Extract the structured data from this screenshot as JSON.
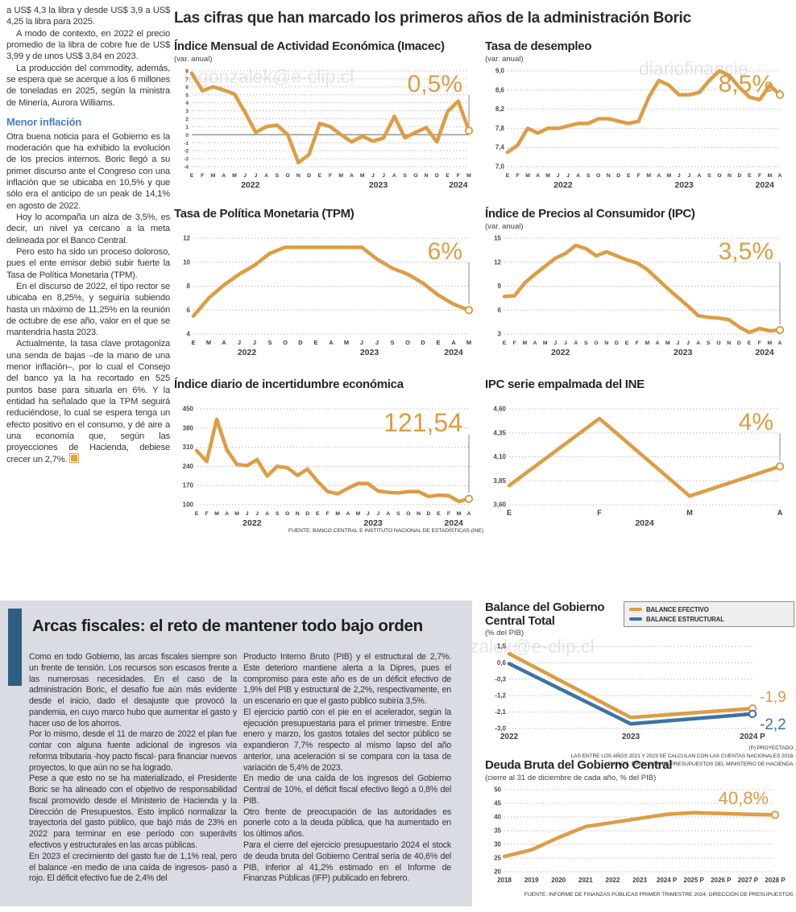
{
  "palette": {
    "orange": "#DE9C44",
    "blue": "#3C72A6",
    "grid": "#BDBDBD",
    "axis": "#4A4A4A",
    "accent_blue": "#2E5F83",
    "subhead_blue": "#4A7EBB"
  },
  "headline": "Las cifras que han marcado los primeros años de la administración Boric",
  "watermarks": [
    "iagonzalek@e-clip.cl",
    "diariofinancie",
    "diariofinanciero#hagonzalek@e-clip.cl"
  ],
  "article": {
    "paragraphs": [
      "a US$ 4,3 la libra y desde US$ 3,9 a US$ 4,25 la libra para 2025.",
      "A modo de contexto, en 2022 el precio promedio de la libra de cobre fue de US$ 3,99 y de unos US$ 3,84 en 2023.",
      "La producción del commodity, además, se espera que se acerque a los 6 millones de toneladas en 2025, según la ministra de Minería, Aurora Williams.",
      "Otra buena noticia para el Gobierno es la moderación que ha exhibido la evolución de los precios internos. Boric llegó a su primer discurso ante el Congreso con una inflación que se ubicaba en 10,5% y que sólo era el anticipo de un peak de 14,1% en agosto de 2022.",
      "Hoy lo acompaña un alza de 3,5%, es decir, un nivel ya cercano a la meta delineada por el Banco Central.",
      "Pero esto ha sido un proceso doloroso, pues el ente emisor debió subir fuerte la Tasa de Política Monetaria (TPM).",
      "En el discurso de 2022, el tipo rector se ubicaba en 8,25%, y seguiría subiendo hasta un máximo de 11,25% en la reunión de octubre de ese año, valor en el que se mantendría hasta 2023.",
      "Actualmente, la tasa clave protagoniza una senda de bajas –de la mano de una menor inflación–, por lo cual el Consejo del banco ya la ha recortado en 525 puntos base para situarla en 6%. Y la entidad ha señalado que la TPM seguirá reduciéndose, lo cual se espera tenga un efecto positivo en el consumo, y dé aire a una economía que, según las proyecciones de Hacienda, debiese crecer un 2,7%."
    ],
    "subhead": "Menor inflación"
  },
  "fiscal": {
    "title": "Arcas fiscales: el reto de mantener todo bajo orden",
    "col1": [
      "Como en todo Gobierno, las arcas fiscales siempre son un frente de tensión. Los recursos son escasos frente a las numerosas necesidades. En el caso de la administración Boric, el desafío fue aún más evidente desde el inicio, dado el desajuste que provocó la pandemia, en cuyo marco hubo que aumentar el gasto y hacer uso de los ahorros.",
      "Por lo mismo, desde el 11 de marzo de 2022 el plan fue contar con alguna fuente adicional de ingresos vía reforma tributaria -hoy pacto fiscal- para financiar nuevos proyectos, lo que aún no se ha logrado.",
      "Pese a que esto no se ha materializado, el Presidente Boric se ha alineado con el objetivo de responsabilidad fiscal promovido desde el Ministerio de Hacienda y la Dirección de Presupuestos. Esto implicó normalizar la trayectoria del gasto público, que bajó más de 23% en 2022 para terminar en ese período con superávits efectivos y estructurales en las arcas públicas.",
      "En 2023 el crecimiento del gasto fue de 1,1% real, pero el balance -en medio de una caída de ingresos-  pasó a rojo. El déficit efectivo fue de 2,4% del"
    ],
    "col2": [
      "Producto Interno Bruto (PIB) y el estructural de 2,7%. Este deterioro mantiene alerta a la Dipres, pues el compromiso para este año es de un déficit efectivo de 1,9% del PIB y estructural de 2,2%, respectivamente, en un escenario en que el gasto público subiría 3,5%.",
      "El ejercicio partió con el pie en el acelerador, según la ejecución presupuestaria para el primer trimestre. Entre enero y marzo, los gastos totales del sector público se expandieron 7,7% respecto al mismo lapso del año anterior, una aceleración si se compara con la tasa de variación de 5,4% de 2023.",
      "En medio de una caída de los ingresos del Gobierno Central de 10%, el déficit fiscal efectivo llegó a 0,8% del PIB.",
      "Otro frente de preocupación de las autoridades es ponerle coto a la deuda pública, que ha aumentado en los últimos años.",
      "Para el cierre del ejercicio presupuestario 2024 el stock de deuda bruta del Gobierno Central sería de 40,6% del PIB, inferior al 41,2% estimado en el Informe de Finanzas Públicas (IFP) publicado en febrero."
    ]
  },
  "chart_data": [
    {
      "id": "imacec",
      "type": "line",
      "title": "Índice Mensual de Actividad Económica (Imacec)",
      "subtitle": "(var. anual)",
      "ylim": [
        -4,
        8
      ],
      "zero_line": true,
      "marker_last": true,
      "connector": true,
      "yticks": [
        {
          "v": 8,
          "l": "8"
        },
        {
          "v": 7,
          "l": "7"
        },
        {
          "v": 6,
          "l": "6"
        },
        {
          "v": 5,
          "l": "5"
        },
        {
          "v": 4,
          "l": "4"
        },
        {
          "v": 3,
          "l": "3"
        },
        {
          "v": 2,
          "l": "2"
        },
        {
          "v": 1,
          "l": "1"
        },
        {
          "v": 0,
          "l": "0"
        },
        {
          "v": -1,
          "l": "-1"
        },
        {
          "v": -2,
          "l": "-2"
        },
        {
          "v": -3,
          "l": "-3"
        },
        {
          "v": -4,
          "l": "-4"
        }
      ],
      "x_labels": [
        "E",
        "F",
        "M",
        "A",
        "M",
        "J",
        "J",
        "A",
        "S",
        "O",
        "N",
        "D",
        "E",
        "F",
        "M",
        "A",
        "M",
        "J",
        "J",
        "A",
        "S",
        "O",
        "N",
        "D",
        "E",
        "F",
        "M"
      ],
      "years": [
        {
          "label": "2022",
          "i": 5.5
        },
        {
          "label": "2023",
          "i": 17.5
        },
        {
          "label": "2024",
          "i": 25
        }
      ],
      "series": [
        {
          "name": "Imacec var. anual",
          "color": "orange",
          "values": [
            7.7,
            5.5,
            6.0,
            5.6,
            5.1,
            2.8,
            0.3,
            1.0,
            1.2,
            0.0,
            -3.5,
            -2.5,
            1.4,
            1.0,
            0.0,
            -0.9,
            -0.2,
            -0.8,
            -0.4,
            2.3,
            -0.4,
            0.3,
            0.9,
            -0.9,
            2.9,
            4.2,
            0.5
          ]
        }
      ],
      "annotation": {
        "text": "0,5%",
        "color": "orange"
      }
    },
    {
      "id": "desempleo",
      "type": "line",
      "title": "Tasa de desempleo",
      "subtitle": "(var. anual)",
      "ylim": [
        7.0,
        9.0
      ],
      "zero_line": false,
      "marker_last": true,
      "connector": true,
      "yticks": [
        {
          "v": 9.0,
          "l": "9,0"
        },
        {
          "v": 8.6,
          "l": "8,6"
        },
        {
          "v": 8.2,
          "l": "8,2"
        },
        {
          "v": 7.8,
          "l": "7,8"
        },
        {
          "v": 7.4,
          "l": "7,4"
        },
        {
          "v": 7.0,
          "l": "7,0"
        }
      ],
      "x_labels": [
        "E",
        "F",
        "M",
        "A",
        "M",
        "J",
        "J",
        "A",
        "S",
        "O",
        "N",
        "D",
        "E",
        "F",
        "M",
        "A",
        "M",
        "J",
        "J",
        "A",
        "S",
        "O",
        "N",
        "D",
        "E",
        "F",
        "M",
        "A"
      ],
      "years": [
        {
          "label": "2022",
          "i": 5.5
        },
        {
          "label": "2023",
          "i": 17.5
        },
        {
          "label": "2024",
          "i": 25.5
        }
      ],
      "series": [
        {
          "name": "Tasa de desempleo",
          "color": "orange",
          "values": [
            7.3,
            7.45,
            7.8,
            7.7,
            7.8,
            7.8,
            7.85,
            7.9,
            7.9,
            8.0,
            8.0,
            7.95,
            7.9,
            7.95,
            8.45,
            8.8,
            8.7,
            8.5,
            8.5,
            8.55,
            8.8,
            9.0,
            8.9,
            8.65,
            8.45,
            8.4,
            8.7,
            8.5
          ]
        }
      ],
      "annotation": {
        "text": "8,5%",
        "color": "orange"
      }
    },
    {
      "id": "tpm",
      "type": "line",
      "title": "Tasa de Política Monetaria (TPM)",
      "subtitle": "",
      "ylim": [
        4,
        12
      ],
      "zero_line": false,
      "marker_last": true,
      "connector": true,
      "yticks": [
        {
          "v": 12,
          "l": "12"
        },
        {
          "v": 10,
          "l": "10"
        },
        {
          "v": 8,
          "l": "8"
        },
        {
          "v": 6,
          "l": "6"
        },
        {
          "v": 4,
          "l": "4"
        }
      ],
      "x_labels": [
        "E",
        "M",
        "A",
        "J",
        "J",
        "S",
        "O",
        "D",
        "E",
        "A",
        "M",
        "J",
        "J",
        "S",
        "O",
        "D",
        "E",
        "A",
        "M"
      ],
      "years": [
        {
          "label": "2022",
          "i": 3.5
        },
        {
          "label": "2023",
          "i": 11.5
        },
        {
          "label": "2024",
          "i": 17
        }
      ],
      "series": [
        {
          "name": "TPM",
          "color": "orange",
          "values": [
            5.5,
            7.0,
            8.1,
            9.0,
            9.75,
            10.75,
            11.25,
            11.25,
            11.25,
            11.25,
            11.25,
            11.25,
            10.25,
            9.5,
            9.0,
            8.25,
            7.25,
            6.5,
            6.0
          ]
        }
      ],
      "annotation": {
        "text": "6%",
        "color": "orange"
      }
    },
    {
      "id": "ipc",
      "type": "line",
      "title": "Índice de Precios al Consumidor (IPC)",
      "subtitle": "(var. anual)",
      "ylim": [
        3,
        15
      ],
      "zero_line": false,
      "marker_last": true,
      "connector": true,
      "yticks": [
        {
          "v": 15,
          "l": "15"
        },
        {
          "v": 12,
          "l": "12"
        },
        {
          "v": 9,
          "l": "9"
        },
        {
          "v": 6,
          "l": "6"
        },
        {
          "v": 3,
          "l": "3"
        }
      ],
      "x_labels": [
        "E",
        "F",
        "M",
        "A",
        "M",
        "J",
        "J",
        "A",
        "S",
        "O",
        "N",
        "D",
        "E",
        "F",
        "M",
        "A",
        "M",
        "J",
        "J",
        "A",
        "S",
        "O",
        "N",
        "D",
        "E",
        "F",
        "M",
        "A"
      ],
      "years": [
        {
          "label": "2022",
          "i": 5.5
        },
        {
          "label": "2023",
          "i": 17.5
        },
        {
          "label": "2024",
          "i": 25.5
        }
      ],
      "series": [
        {
          "name": "IPC var. anual",
          "color": "orange",
          "values": [
            7.7,
            7.8,
            9.4,
            10.5,
            11.5,
            12.5,
            13.1,
            14.1,
            13.7,
            12.8,
            13.3,
            12.8,
            12.3,
            11.9,
            11.1,
            9.9,
            8.7,
            7.6,
            6.5,
            5.3,
            5.1,
            5.0,
            4.8,
            3.9,
            3.2,
            3.7,
            3.4,
            3.5
          ]
        }
      ],
      "annotation": {
        "text": "3,5%",
        "color": "orange"
      }
    },
    {
      "id": "incertidumbre",
      "type": "line",
      "title": "Índice diario de incertidumbre económica",
      "subtitle": "",
      "ylim": [
        100,
        450
      ],
      "zero_line": false,
      "marker_last": true,
      "connector": true,
      "yticks": [
        {
          "v": 450,
          "l": "450"
        },
        {
          "v": 380,
          "l": "380"
        },
        {
          "v": 310,
          "l": "310"
        },
        {
          "v": 240,
          "l": "240"
        },
        {
          "v": 170,
          "l": "170"
        },
        {
          "v": 100,
          "l": "100"
        }
      ],
      "x_labels": [
        "E",
        "F",
        "M",
        "A",
        "M",
        "J",
        "J",
        "A",
        "S",
        "O",
        "N",
        "D",
        "E",
        "F",
        "M",
        "A",
        "M",
        "J",
        "J",
        "A",
        "S",
        "O",
        "N",
        "D",
        "E",
        "F",
        "M",
        "A"
      ],
      "years": [
        {
          "label": "2022",
          "i": 5.5
        },
        {
          "label": "2023",
          "i": 17.5
        },
        {
          "label": "2024",
          "i": 25.5
        }
      ],
      "series": [
        {
          "name": "Índice de incertidumbre",
          "color": "orange",
          "values": [
            298,
            258,
            412,
            300,
            247,
            243,
            265,
            205,
            240,
            235,
            207,
            230,
            185,
            148,
            140,
            160,
            178,
            177,
            150,
            145,
            143,
            148,
            148,
            130,
            135,
            133,
            112,
            121.54
          ]
        }
      ],
      "annotation": {
        "text": "121,54",
        "color": "orange"
      },
      "source": "FUENTE: BANCO CENTRAL E INSTITUTO NACIONAL DE ESTADÍSTICAS (INE)"
    },
    {
      "id": "ipc-empalmada",
      "type": "line",
      "title": "IPC serie empalmada del INE",
      "subtitle": "",
      "ylim": [
        3.6,
        4.6
      ],
      "zero_line": false,
      "marker_last": true,
      "connector": true,
      "yticks": [
        {
          "v": 4.6,
          "l": "4,60"
        },
        {
          "v": 4.35,
          "l": "4,35"
        },
        {
          "v": 4.1,
          "l": "4,10"
        },
        {
          "v": 3.85,
          "l": "3,85"
        },
        {
          "v": 3.6,
          "l": "3,60"
        }
      ],
      "x_labels": [
        "E",
        "F",
        "M",
        "A"
      ],
      "years": [
        {
          "label": "2024",
          "i": 1.5
        }
      ],
      "series": [
        {
          "name": "IPC serie empalmada",
          "color": "orange",
          "values": [
            3.8,
            4.5,
            3.69,
            4.0
          ]
        }
      ],
      "annotation": {
        "text": "4%",
        "color": "orange"
      }
    },
    {
      "id": "balance",
      "type": "line",
      "title": "Balance del Gobierno Central Total",
      "subtitle": "(% del PIB)",
      "ylim": [
        -3.0,
        1.5
      ],
      "zero_line": false,
      "marker_last": true,
      "connector": false,
      "yticks": [
        {
          "v": 1.5,
          "l": "1,5"
        },
        {
          "v": 0.6,
          "l": "0,6"
        },
        {
          "v": -0.3,
          "l": "-0,3"
        },
        {
          "v": -1.2,
          "l": "-1,2"
        },
        {
          "v": -2.1,
          "l": "-2,1"
        },
        {
          "v": -3.0,
          "l": "-3,0"
        }
      ],
      "x_labels": [
        "2022",
        "2023",
        "2024 P"
      ],
      "years": [],
      "series": [
        {
          "name": "BALANCE EFECTIVO",
          "color": "orange",
          "values": [
            1.1,
            -2.4,
            -1.9
          ]
        },
        {
          "name": "BALANCE ESTRUCTURAL",
          "color": "blue",
          "values": [
            0.55,
            -2.75,
            -2.2
          ]
        }
      ],
      "end_labels": [
        {
          "text": "-1,9",
          "v": -1.9,
          "dy": -8,
          "color": "orange"
        },
        {
          "text": "-2,2",
          "v": -2.2,
          "dy": 19,
          "color": "blue"
        }
      ],
      "legend": [
        {
          "label": "BALANCE EFECTIVO",
          "color": "orange"
        },
        {
          "label": "BALANCE ESTRUCTURAL",
          "color": "blue"
        }
      ],
      "notes": [
        "(P) PROYECTADO.",
        "LAS ENTRE LOS AÑOS 2021 Y 2023 SE CALCULAN  CON LAS CUENTAS NACIONALES 2018.",
        "FUENTE: DIRECCIÓN DE PRESUPUESTOS DEL MINISTERIO DE HACIENDA."
      ]
    },
    {
      "id": "deuda",
      "type": "line",
      "title": "Deuda Bruta del Gobierno Central",
      "subtitle": "(cierre al 31 de diciembre de cada año, % del PIB)",
      "ylim": [
        20,
        50
      ],
      "zero_line": false,
      "marker_last": true,
      "connector": false,
      "yticks": [
        {
          "v": 50,
          "l": "50"
        },
        {
          "v": 45,
          "l": "45"
        },
        {
          "v": 40,
          "l": "40"
        },
        {
          "v": 35,
          "l": "35"
        },
        {
          "v": 30,
          "l": "30"
        },
        {
          "v": 25,
          "l": "25"
        },
        {
          "v": 20,
          "l": "20"
        }
      ],
      "x_labels": [
        "2018",
        "2019",
        "2020",
        "2021",
        "2022",
        "2023",
        "2024 P",
        "2025 P",
        "2026 P",
        "2027 P",
        "2028 P"
      ],
      "years": [],
      "series": [
        {
          "name": "Deuda bruta (% del PIB)",
          "color": "orange",
          "values": [
            25.6,
            28.0,
            32.5,
            36.5,
            38.0,
            39.5,
            41.0,
            41.6,
            41.3,
            41.0,
            40.8
          ]
        }
      ],
      "annotation": {
        "text": "40,8%",
        "color": "orange"
      },
      "source": "FUENTE: INFORME DE FINANZAS PÚBLICAS PRIMER TRIMESTRE 2024, DIRECCIÓN DE PRESUPUESTOS."
    }
  ]
}
